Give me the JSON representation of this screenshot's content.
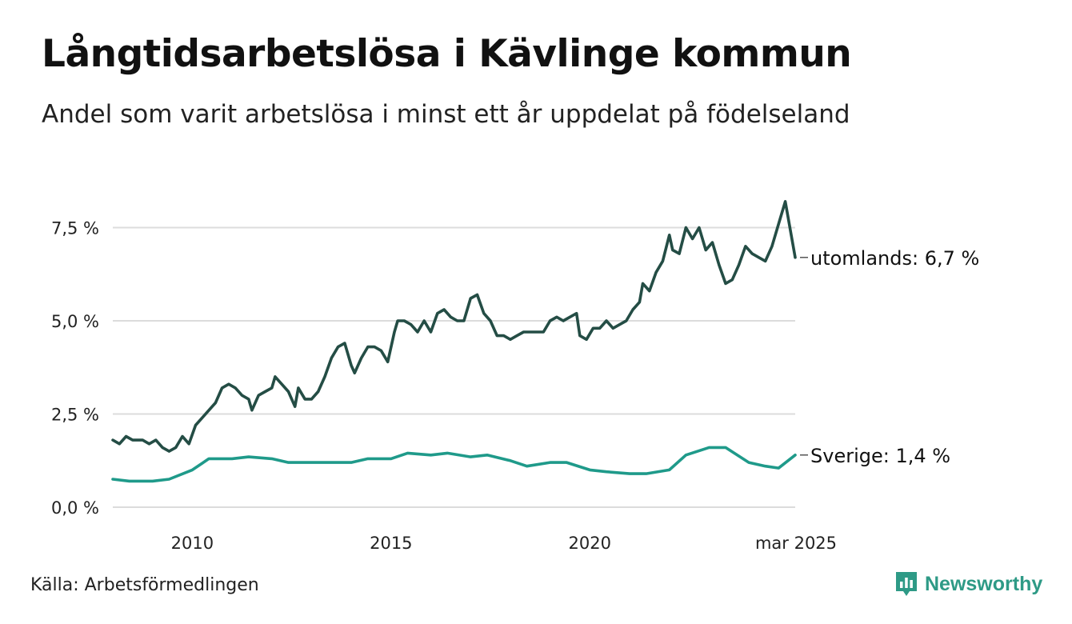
{
  "header": {
    "title": "Långtidsarbetslösa i Kävlinge kommun",
    "subtitle": "Andel som varit arbetslösa i minst ett år uppdelat på födelseland"
  },
  "footer": {
    "source": "Källa: Arbetsförmedlingen",
    "brand": "Newsworthy"
  },
  "colors": {
    "utomlands": "#244d45",
    "sverige": "#1f9a8a",
    "grid": "#dcdcdc",
    "brand": "#2e9a86"
  },
  "chart_data": {
    "type": "line",
    "title": "Långtidsarbetslösa i Kävlinge kommun",
    "subtitle": "Andel som varit arbetslösa i minst ett år uppdelat på födelseland",
    "xlabel": "",
    "ylabel": "",
    "x_range": [
      "2008-01",
      "2025-03"
    ],
    "ylim": [
      0,
      9.5
    ],
    "y_ticks": [
      0,
      2.5,
      5.0,
      7.5
    ],
    "y_tick_labels": [
      "0,0 %",
      "2,5 %",
      "5,0 %",
      "7,5 %"
    ],
    "x_ticks": [
      {
        "date": "2010-01",
        "label": "2010"
      },
      {
        "date": "2015-01",
        "label": "2015"
      },
      {
        "date": "2020-01",
        "label": "2020"
      },
      {
        "date": "2025-03",
        "label": "mar 2025"
      }
    ],
    "grid": "horizontal",
    "legend": "end-of-line labels",
    "series": [
      {
        "name": "utomlands",
        "end_label": "utomlands: 6,7 %",
        "points": [
          [
            "2008-01",
            1.8
          ],
          [
            "2008-03",
            1.7
          ],
          [
            "2008-05",
            1.9
          ],
          [
            "2008-07",
            1.8
          ],
          [
            "2008-10",
            1.8
          ],
          [
            "2008-12",
            1.7
          ],
          [
            "2009-02",
            1.8
          ],
          [
            "2009-04",
            1.6
          ],
          [
            "2009-06",
            1.5
          ],
          [
            "2009-08",
            1.6
          ],
          [
            "2009-10",
            1.9
          ],
          [
            "2009-12",
            1.7
          ],
          [
            "2010-02",
            2.2
          ],
          [
            "2010-04",
            2.4
          ],
          [
            "2010-06",
            2.6
          ],
          [
            "2010-08",
            2.8
          ],
          [
            "2010-10",
            3.2
          ],
          [
            "2010-12",
            3.3
          ],
          [
            "2011-02",
            3.2
          ],
          [
            "2011-04",
            3.0
          ],
          [
            "2011-06",
            2.9
          ],
          [
            "2011-07",
            2.6
          ],
          [
            "2011-09",
            3.0
          ],
          [
            "2011-11",
            3.1
          ],
          [
            "2012-01",
            3.2
          ],
          [
            "2012-02",
            3.5
          ],
          [
            "2012-04",
            3.3
          ],
          [
            "2012-06",
            3.1
          ],
          [
            "2012-08",
            2.7
          ],
          [
            "2012-09",
            3.2
          ],
          [
            "2012-11",
            2.9
          ],
          [
            "2013-01",
            2.9
          ],
          [
            "2013-03",
            3.1
          ],
          [
            "2013-05",
            3.5
          ],
          [
            "2013-07",
            4.0
          ],
          [
            "2013-09",
            4.3
          ],
          [
            "2013-11",
            4.4
          ],
          [
            "2014-01",
            3.8
          ],
          [
            "2014-02",
            3.6
          ],
          [
            "2014-04",
            4.0
          ],
          [
            "2014-06",
            4.3
          ],
          [
            "2014-08",
            4.3
          ],
          [
            "2014-10",
            4.2
          ],
          [
            "2014-12",
            3.9
          ],
          [
            "2015-02",
            4.7
          ],
          [
            "2015-03",
            5.0
          ],
          [
            "2015-05",
            5.0
          ],
          [
            "2015-07",
            4.9
          ],
          [
            "2015-09",
            4.7
          ],
          [
            "2015-11",
            5.0
          ],
          [
            "2016-01",
            4.7
          ],
          [
            "2016-03",
            5.2
          ],
          [
            "2016-05",
            5.3
          ],
          [
            "2016-07",
            5.1
          ],
          [
            "2016-09",
            5.0
          ],
          [
            "2016-11",
            5.0
          ],
          [
            "2017-01",
            5.6
          ],
          [
            "2017-03",
            5.7
          ],
          [
            "2017-05",
            5.2
          ],
          [
            "2017-07",
            5.0
          ],
          [
            "2017-09",
            4.6
          ],
          [
            "2017-11",
            4.6
          ],
          [
            "2018-01",
            4.5
          ],
          [
            "2018-03",
            4.6
          ],
          [
            "2018-05",
            4.7
          ],
          [
            "2018-07",
            4.7
          ],
          [
            "2018-09",
            4.7
          ],
          [
            "2018-11",
            4.7
          ],
          [
            "2019-01",
            5.0
          ],
          [
            "2019-03",
            5.1
          ],
          [
            "2019-05",
            5.0
          ],
          [
            "2019-07",
            5.1
          ],
          [
            "2019-09",
            5.2
          ],
          [
            "2019-10",
            4.6
          ],
          [
            "2019-12",
            4.5
          ],
          [
            "2020-02",
            4.8
          ],
          [
            "2020-04",
            4.8
          ],
          [
            "2020-06",
            5.0
          ],
          [
            "2020-08",
            4.8
          ],
          [
            "2020-10",
            4.9
          ],
          [
            "2020-12",
            5.0
          ],
          [
            "2021-02",
            5.3
          ],
          [
            "2021-04",
            5.5
          ],
          [
            "2021-05",
            6.0
          ],
          [
            "2021-07",
            5.8
          ],
          [
            "2021-09",
            6.3
          ],
          [
            "2021-11",
            6.6
          ],
          [
            "2022-01",
            7.3
          ],
          [
            "2022-02",
            6.9
          ],
          [
            "2022-04",
            6.8
          ],
          [
            "2022-06",
            7.5
          ],
          [
            "2022-08",
            7.2
          ],
          [
            "2022-10",
            7.5
          ],
          [
            "2022-12",
            6.9
          ],
          [
            "2023-02",
            7.1
          ],
          [
            "2023-04",
            6.5
          ],
          [
            "2023-06",
            6.0
          ],
          [
            "2023-08",
            6.1
          ],
          [
            "2023-10",
            6.5
          ],
          [
            "2023-12",
            7.0
          ],
          [
            "2024-02",
            6.8
          ],
          [
            "2024-04",
            6.7
          ],
          [
            "2024-06",
            6.6
          ],
          [
            "2024-08",
            7.0
          ],
          [
            "2024-10",
            7.6
          ],
          [
            "2024-12",
            8.2
          ],
          [
            "2025-03",
            6.7
          ]
        ]
      },
      {
        "name": "Sverige",
        "end_label": "Sverige: 1,4 %",
        "points": [
          [
            "2008-01",
            0.75
          ],
          [
            "2008-06",
            0.7
          ],
          [
            "2009-01",
            0.7
          ],
          [
            "2009-06",
            0.75
          ],
          [
            "2010-01",
            1.0
          ],
          [
            "2010-06",
            1.3
          ],
          [
            "2011-01",
            1.3
          ],
          [
            "2011-06",
            1.35
          ],
          [
            "2012-01",
            1.3
          ],
          [
            "2012-06",
            1.2
          ],
          [
            "2013-01",
            1.2
          ],
          [
            "2013-06",
            1.2
          ],
          [
            "2014-01",
            1.2
          ],
          [
            "2014-06",
            1.3
          ],
          [
            "2015-01",
            1.3
          ],
          [
            "2015-06",
            1.45
          ],
          [
            "2016-01",
            1.4
          ],
          [
            "2016-06",
            1.45
          ],
          [
            "2017-01",
            1.35
          ],
          [
            "2017-06",
            1.4
          ],
          [
            "2018-01",
            1.25
          ],
          [
            "2018-06",
            1.1
          ],
          [
            "2019-01",
            1.2
          ],
          [
            "2019-06",
            1.2
          ],
          [
            "2020-01",
            1.0
          ],
          [
            "2020-06",
            0.95
          ],
          [
            "2021-01",
            0.9
          ],
          [
            "2021-06",
            0.9
          ],
          [
            "2022-01",
            1.0
          ],
          [
            "2022-06",
            1.4
          ],
          [
            "2023-01",
            1.6
          ],
          [
            "2023-06",
            1.6
          ],
          [
            "2024-01",
            1.2
          ],
          [
            "2024-06",
            1.1
          ],
          [
            "2024-10",
            1.05
          ],
          [
            "2025-03",
            1.4
          ]
        ]
      }
    ]
  }
}
